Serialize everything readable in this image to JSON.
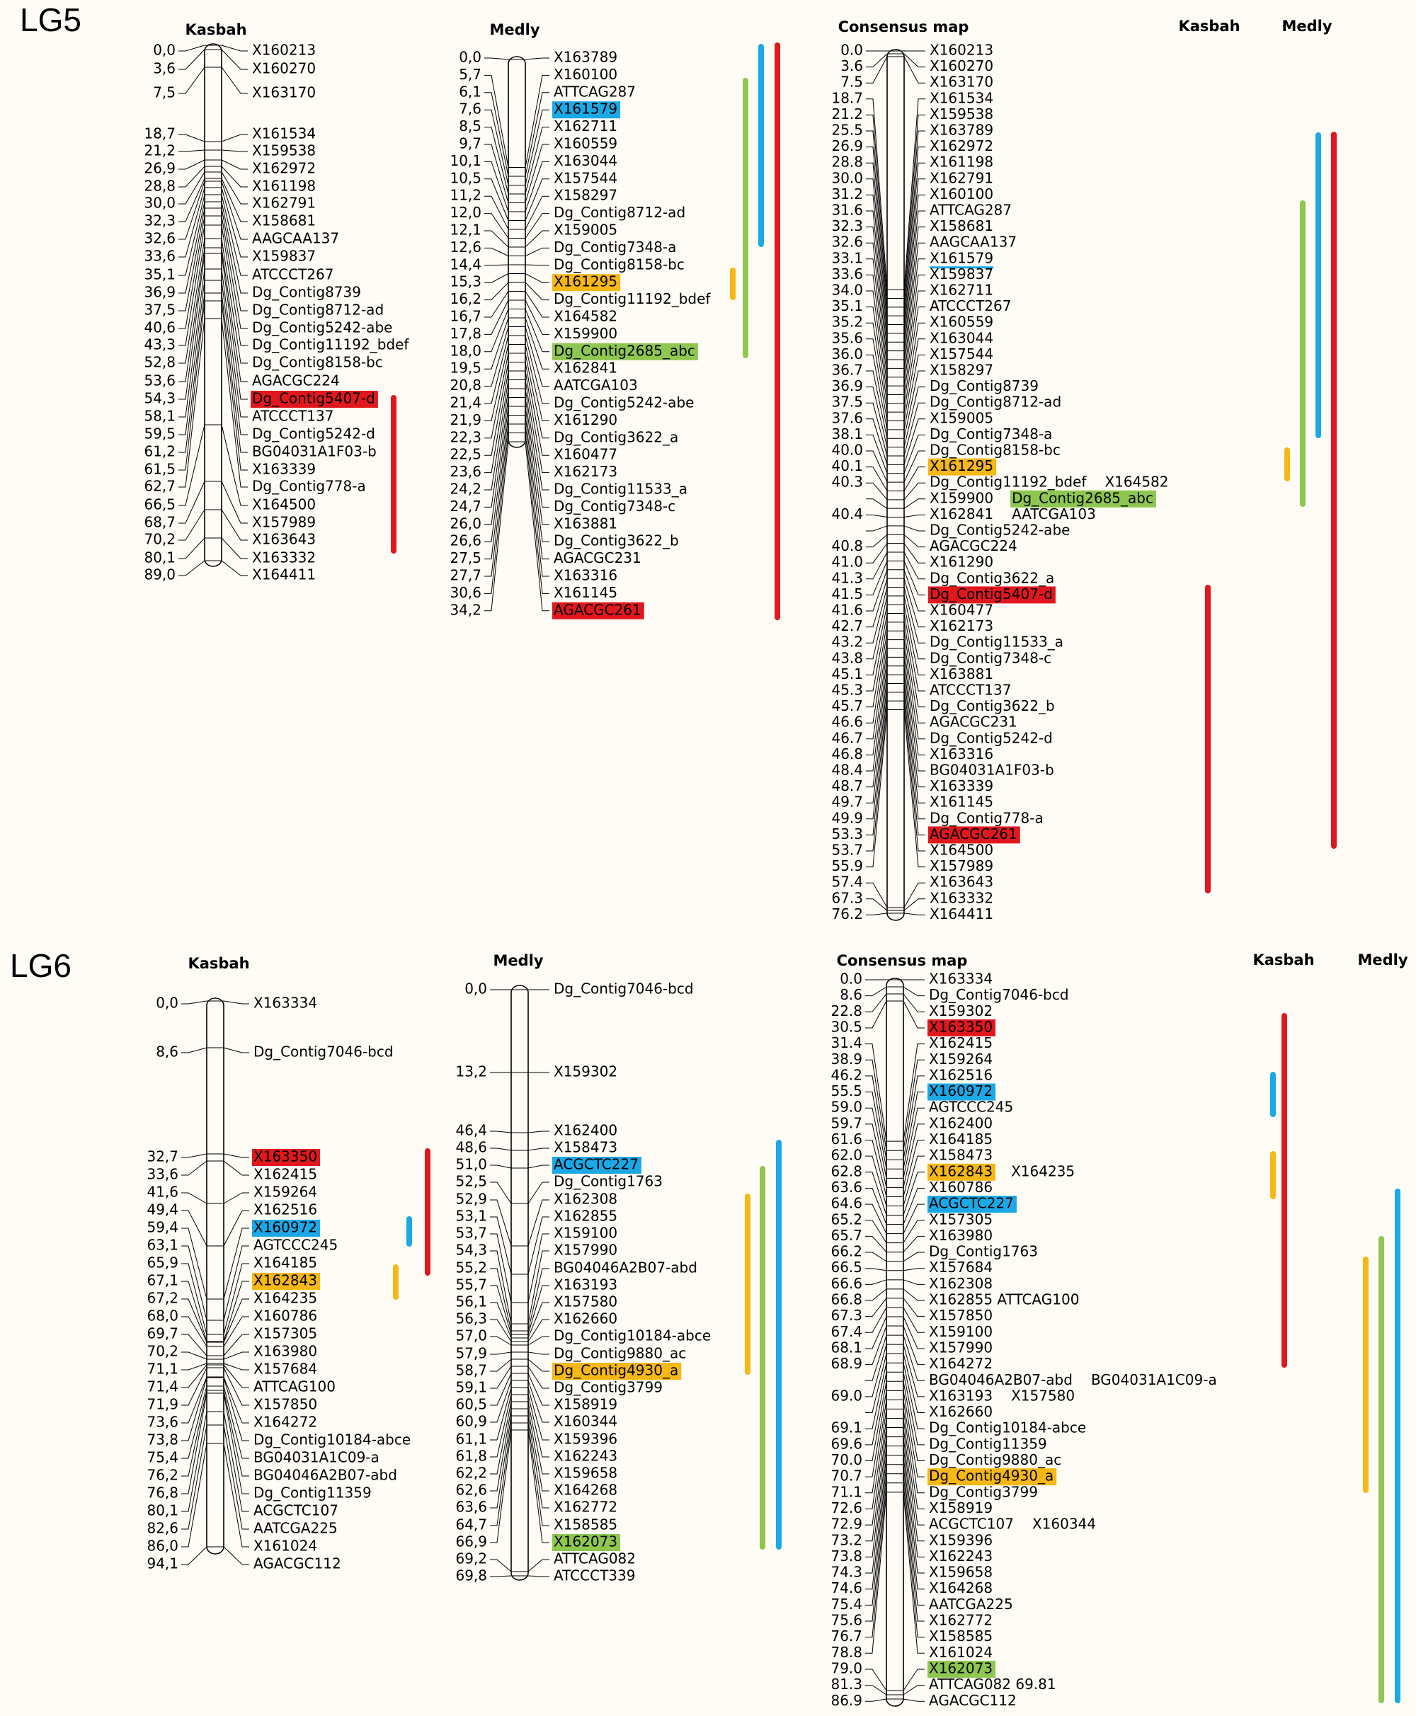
{
  "colors": {
    "background": "#fffcf6",
    "red": "#e0181e",
    "blue": "#1ba8e6",
    "green": "#8ec74f",
    "yellow": "#f7b714",
    "line": "#000000"
  },
  "legend_labels": {
    "kasbah": "Kasbah",
    "medly": "Medly"
  },
  "lg5": {
    "label": "LG5",
    "kasbah": {
      "title": "Kasbah",
      "markers": [
        {
          "pos": "0,0",
          "name": "X160213"
        },
        {
          "pos": "3,6",
          "name": "X160270"
        },
        {
          "pos": "7,5",
          "name": "X163170"
        },
        {
          "pos": "18,7",
          "name": "X161534"
        },
        {
          "pos": "21,2",
          "name": "X159538"
        },
        {
          "pos": "26,9",
          "name": "X162972"
        },
        {
          "pos": "28,8",
          "name": "X161198"
        },
        {
          "pos": "30,0",
          "name": "X162791"
        },
        {
          "pos": "32,3",
          "name": "X158681"
        },
        {
          "pos": "32,6",
          "name": "AAGCAA137"
        },
        {
          "pos": "33,6",
          "name": "X159837"
        },
        {
          "pos": "35,1",
          "name": "ATCCCT267"
        },
        {
          "pos": "36,9",
          "name": "Dg_Contig8739"
        },
        {
          "pos": "37,5",
          "name": "Dg_Contig8712-ad"
        },
        {
          "pos": "40,6",
          "name": "Dg_Contig5242-abe"
        },
        {
          "pos": "43,3",
          "name": "Dg_Contig11192_bdef"
        },
        {
          "pos": "52,8",
          "name": "Dg_Contig8158-bc"
        },
        {
          "pos": "53,6",
          "name": "AGACGC224"
        },
        {
          "pos": "54,3",
          "name": "Dg_Contig5407-d",
          "hl": "red"
        },
        {
          "pos": "58,1",
          "name": "ATCCCT137"
        },
        {
          "pos": "59,5",
          "name": "Dg_Contig5242-d"
        },
        {
          "pos": "61,2",
          "name": "BG04031A1F03-b"
        },
        {
          "pos": "61,5",
          "name": "X163339"
        },
        {
          "pos": "62,7",
          "name": "Dg_Contig778-a"
        },
        {
          "pos": "66,5",
          "name": "X164500"
        },
        {
          "pos": "68,7",
          "name": "X157989"
        },
        {
          "pos": "70,2",
          "name": "X163643"
        },
        {
          "pos": "80,1",
          "name": "X163332"
        },
        {
          "pos": "89,0",
          "name": "X164411"
        }
      ]
    },
    "medly": {
      "title": "Medly",
      "markers": [
        {
          "pos": "0,0",
          "name": "X163789"
        },
        {
          "pos": "5,7",
          "name": "X160100"
        },
        {
          "pos": "6,1",
          "name": "ATTCAG287"
        },
        {
          "pos": "7,6",
          "name": "X161579",
          "hl": "blue"
        },
        {
          "pos": "8,5",
          "name": "X162711"
        },
        {
          "pos": "9,7",
          "name": "X160559"
        },
        {
          "pos": "10,1",
          "name": "X163044"
        },
        {
          "pos": "10,5",
          "name": "X157544"
        },
        {
          "pos": "11,2",
          "name": "X158297"
        },
        {
          "pos": "12,0",
          "name": "Dg_Contig8712-ad"
        },
        {
          "pos": "12,1",
          "name": "X159005"
        },
        {
          "pos": "12,6",
          "name": "Dg_Contig7348-a"
        },
        {
          "pos": "14,4",
          "name": "Dg_Contig8158-bc"
        },
        {
          "pos": "15,3",
          "name": "X161295",
          "hl": "yellow"
        },
        {
          "pos": "16,2",
          "name": "Dg_Contig11192_bdef"
        },
        {
          "pos": "16,7",
          "name": "X164582"
        },
        {
          "pos": "17,8",
          "name": "X159900"
        },
        {
          "pos": "18,0",
          "name": "Dg_Contig2685_abc",
          "hl": "green"
        },
        {
          "pos": "19,5",
          "name": "X162841"
        },
        {
          "pos": "20,8",
          "name": "AATCGA103"
        },
        {
          "pos": "21,4",
          "name": "Dg_Contig5242-abe"
        },
        {
          "pos": "21,9",
          "name": "X161290"
        },
        {
          "pos": "22,3",
          "name": "Dg_Contig3622_a"
        },
        {
          "pos": "22,5",
          "name": "X160477"
        },
        {
          "pos": "23,6",
          "name": "X162173"
        },
        {
          "pos": "24,2",
          "name": "Dg_Contig11533_a"
        },
        {
          "pos": "24,7",
          "name": "Dg_Contig7348-c"
        },
        {
          "pos": "26,0",
          "name": "X163881"
        },
        {
          "pos": "26,6",
          "name": "Dg_Contig3622_b"
        },
        {
          "pos": "27,5",
          "name": "AGACGC231"
        },
        {
          "pos": "27,7",
          "name": "X163316"
        },
        {
          "pos": "30,6",
          "name": "X161145"
        },
        {
          "pos": "34,2",
          "name": "AGACGC261",
          "hl": "red"
        }
      ]
    },
    "consensus": {
      "title": "Consensus map",
      "markers": [
        {
          "pos": "0.0",
          "name": "X160213"
        },
        {
          "pos": "3.6",
          "name": "X160270"
        },
        {
          "pos": "7.5",
          "name": "X163170"
        },
        {
          "pos": "18.7",
          "name": "X161534"
        },
        {
          "pos": "21.2",
          "name": "X159538"
        },
        {
          "pos": "25.5",
          "name": "X163789"
        },
        {
          "pos": "26.9",
          "name": "X162972"
        },
        {
          "pos": "28.8",
          "name": "X161198"
        },
        {
          "pos": "30.0",
          "name": "X162791"
        },
        {
          "pos": "31.2",
          "name": "X160100"
        },
        {
          "pos": "31.6",
          "name": "ATTCAG287"
        },
        {
          "pos": "32.3",
          "name": "X158681"
        },
        {
          "pos": "32.6",
          "name": "AAGCAA137"
        },
        {
          "pos": "33.1",
          "name": "X161579",
          "ul": "blue"
        },
        {
          "pos": "33.6",
          "name": "X159837"
        },
        {
          "pos": "34.0",
          "name": "X162711"
        },
        {
          "pos": "35.1",
          "name": "ATCCCT267"
        },
        {
          "pos": "35.2",
          "name": "X160559"
        },
        {
          "pos": "35.6",
          "name": "X163044"
        },
        {
          "pos": "36.0",
          "name": "X157544"
        },
        {
          "pos": "36.7",
          "name": "X158297"
        },
        {
          "pos": "36.9",
          "name": "Dg_Contig8739"
        },
        {
          "pos": "37.5",
          "name": "Dg_Contig8712-ad"
        },
        {
          "pos": "37.6",
          "name": "X159005"
        },
        {
          "pos": "38.1",
          "name": "Dg_Contig7348-a"
        },
        {
          "pos": "40.0",
          "name": "Dg_Contig8158-bc"
        },
        {
          "pos": "40.1",
          "name": "X161295",
          "hl": "yellow"
        },
        {
          "pos": "40.3",
          "name": "Dg_Contig11192_bdef",
          "extra": "X164582"
        },
        {
          "pos": "",
          "name": "X159900",
          "extra": "Dg_Contig2685_abc",
          "extra_hl": "green"
        },
        {
          "pos": "40.4",
          "name": "X162841",
          "extra": "AATCGA103"
        },
        {
          "pos": "",
          "name": "Dg_Contig5242-abe"
        },
        {
          "pos": "40.8",
          "name": "AGACGC224"
        },
        {
          "pos": "41.0",
          "name": "X161290"
        },
        {
          "pos": "41.3",
          "name": "Dg_Contig3622_a"
        },
        {
          "pos": "41.5",
          "name": "Dg_Contig5407-d",
          "hl": "red"
        },
        {
          "pos": "41.6",
          "name": "X160477"
        },
        {
          "pos": "42.7",
          "name": "X162173"
        },
        {
          "pos": "43.2",
          "name": "Dg_Contig11533_a"
        },
        {
          "pos": "43.8",
          "name": "Dg_Contig7348-c"
        },
        {
          "pos": "45.1",
          "name": "X163881"
        },
        {
          "pos": "45.3",
          "name": "ATCCCT137"
        },
        {
          "pos": "45.7",
          "name": "Dg_Contig3622_b"
        },
        {
          "pos": "46.6",
          "name": "AGACGC231"
        },
        {
          "pos": "46.7",
          "name": "Dg_Contig5242-d"
        },
        {
          "pos": "46.8",
          "name": "X163316"
        },
        {
          "pos": "48.4",
          "name": "BG04031A1F03-b"
        },
        {
          "pos": "48.7",
          "name": "X163339"
        },
        {
          "pos": "49.7",
          "name": "X161145"
        },
        {
          "pos": "49.9",
          "name": "Dg_Contig778-a"
        },
        {
          "pos": "53.3",
          "name": "AGACGC261",
          "hl": "red"
        },
        {
          "pos": "53.7",
          "name": "X164500"
        },
        {
          "pos": "55.9",
          "name": "X157989"
        },
        {
          "pos": "57.4",
          "name": "X163643"
        },
        {
          "pos": "67.3",
          "name": "X163332"
        },
        {
          "pos": "76.2",
          "name": "X164411"
        }
      ]
    }
  },
  "lg6": {
    "label": "LG6",
    "kasbah": {
      "title": "Kasbah",
      "markers": [
        {
          "pos": "0,0",
          "name": "X163334"
        },
        {
          "pos": "8,6",
          "name": "Dg_Contig7046-bcd"
        },
        {
          "pos": "32,7",
          "name": "X163350",
          "hl": "red"
        },
        {
          "pos": "33,6",
          "name": "X162415"
        },
        {
          "pos": "41,6",
          "name": "X159264"
        },
        {
          "pos": "49,4",
          "name": "X162516"
        },
        {
          "pos": "59,4",
          "name": "X160972",
          "hl": "blue"
        },
        {
          "pos": "63,1",
          "name": "AGTCCC245"
        },
        {
          "pos": "65,9",
          "name": "X164185"
        },
        {
          "pos": "67,1",
          "name": "X162843",
          "hl": "yellow"
        },
        {
          "pos": "67,2",
          "name": "X164235"
        },
        {
          "pos": "68,0",
          "name": "X160786"
        },
        {
          "pos": "69,7",
          "name": "X157305"
        },
        {
          "pos": "70,2",
          "name": "X163980"
        },
        {
          "pos": "71,1",
          "name": "X157684"
        },
        {
          "pos": "71,4",
          "name": "ATTCAG100"
        },
        {
          "pos": "71,9",
          "name": "X157850"
        },
        {
          "pos": "73,6",
          "name": "X164272"
        },
        {
          "pos": "73,8",
          "name": "Dg_Contig10184-abce"
        },
        {
          "pos": "75,4",
          "name": "BG04031A1C09-a"
        },
        {
          "pos": "76,2",
          "name": "BG04046A2B07-abd"
        },
        {
          "pos": "76,8",
          "name": "Dg_Contig11359"
        },
        {
          "pos": "80,1",
          "name": "ACGCTC107"
        },
        {
          "pos": "82,6",
          "name": "AATCGA225"
        },
        {
          "pos": "86,0",
          "name": "X161024"
        },
        {
          "pos": "94,1",
          "name": "AGACGC112"
        }
      ]
    },
    "medly": {
      "title": "Medly",
      "markers": [
        {
          "pos": "0,0",
          "name": "Dg_Contig7046-bcd"
        },
        {
          "pos": "13,2",
          "name": "X159302"
        },
        {
          "pos": "46,4",
          "name": "X162400"
        },
        {
          "pos": "48,6",
          "name": "X158473"
        },
        {
          "pos": "51,0",
          "name": "ACGCTC227",
          "hl": "blue"
        },
        {
          "pos": "52,5",
          "name": "Dg_Contig1763"
        },
        {
          "pos": "52,9",
          "name": "X162308"
        },
        {
          "pos": "53,1",
          "name": "X162855"
        },
        {
          "pos": "53,7",
          "name": "X159100"
        },
        {
          "pos": "54,3",
          "name": "X157990"
        },
        {
          "pos": "55,2",
          "name": "BG04046A2B07-abd"
        },
        {
          "pos": "55,7",
          "name": "X163193"
        },
        {
          "pos": "56,1",
          "name": "X157580"
        },
        {
          "pos": "56,3",
          "name": "X162660"
        },
        {
          "pos": "57,0",
          "name": "Dg_Contig10184-abce"
        },
        {
          "pos": "57,9",
          "name": "Dg_Contig9880_ac"
        },
        {
          "pos": "58,7",
          "name": "Dg_Contig4930_a",
          "hl": "yellow"
        },
        {
          "pos": "59,1",
          "name": "Dg_Contig3799"
        },
        {
          "pos": "60,5",
          "name": "X158919"
        },
        {
          "pos": "60,9",
          "name": "X160344"
        },
        {
          "pos": "61,1",
          "name": "X159396"
        },
        {
          "pos": "61,8",
          "name": "X162243"
        },
        {
          "pos": "62,2",
          "name": "X159658"
        },
        {
          "pos": "62,6",
          "name": "X164268"
        },
        {
          "pos": "63,6",
          "name": "X162772"
        },
        {
          "pos": "64,7",
          "name": "X158585"
        },
        {
          "pos": "66,9",
          "name": "X162073",
          "hl": "green"
        },
        {
          "pos": "69,2",
          "name": "ATTCAG082"
        },
        {
          "pos": "69,8",
          "name": "ATCCCT339"
        }
      ]
    },
    "consensus": {
      "title": "Consensus map",
      "markers": [
        {
          "pos": "0.0",
          "name": "X163334"
        },
        {
          "pos": "8.6",
          "name": "Dg_Contig7046-bcd"
        },
        {
          "pos": "22.8",
          "name": "X159302"
        },
        {
          "pos": "30.5",
          "name": "X163350",
          "hl": "red"
        },
        {
          "pos": "31.4",
          "name": "X162415"
        },
        {
          "pos": "38.9",
          "name": "X159264"
        },
        {
          "pos": "46.2",
          "name": "X162516"
        },
        {
          "pos": "55.5",
          "name": "X160972",
          "hl": "blue"
        },
        {
          "pos": "59.0",
          "name": "AGTCCC245"
        },
        {
          "pos": "59.7",
          "name": "X162400"
        },
        {
          "pos": "61.6",
          "name": "X164185"
        },
        {
          "pos": "62.0",
          "name": "X158473"
        },
        {
          "pos": "62.8",
          "name": "X162843",
          "hl": "yellow",
          "extra": "X164235"
        },
        {
          "pos": "63.6",
          "name": "X160786"
        },
        {
          "pos": "64.6",
          "name": "ACGCTC227",
          "hl": "blue"
        },
        {
          "pos": "65.2",
          "name": "X157305"
        },
        {
          "pos": "65.7",
          "name": "X163980"
        },
        {
          "pos": "66.2",
          "name": "Dg_Contig1763"
        },
        {
          "pos": "66.5",
          "name": "X157684"
        },
        {
          "pos": "66.6",
          "name": "X162308"
        },
        {
          "pos": "66.8",
          "name": "X162855 ATTCAG100"
        },
        {
          "pos": "67.3",
          "name": "X157850"
        },
        {
          "pos": "67.4",
          "name": "X159100"
        },
        {
          "pos": "68.1",
          "name": "X157990"
        },
        {
          "pos": "68.9",
          "name": "X164272"
        },
        {
          "pos": "",
          "name": "BG04046A2B07-abd",
          "extra": "BG04031A1C09-a"
        },
        {
          "pos": "69.0",
          "name": "X163193",
          "extra": "X157580"
        },
        {
          "pos": "",
          "name": "X162660"
        },
        {
          "pos": "69.1",
          "name": "Dg_Contig10184-abce"
        },
        {
          "pos": "69.6",
          "name": "Dg_Contig11359"
        },
        {
          "pos": "70.0",
          "name": "Dg_Contig9880_ac"
        },
        {
          "pos": "70.7",
          "name": "Dg_Contig4930_a",
          "hl": "yellow"
        },
        {
          "pos": "71.1",
          "name": "Dg_Contig3799"
        },
        {
          "pos": "72.6",
          "name": "X158919"
        },
        {
          "pos": "72.9",
          "name": "ACGCTC107",
          "extra": "X160344"
        },
        {
          "pos": "73.2",
          "name": "X159396"
        },
        {
          "pos": "73.8",
          "name": "X162243"
        },
        {
          "pos": "74.3",
          "name": "X159658"
        },
        {
          "pos": "74.6",
          "name": "X164268"
        },
        {
          "pos": "75.4",
          "name": "AATCGA225"
        },
        {
          "pos": "75.6",
          "name": "X162772"
        },
        {
          "pos": "76.7",
          "name": "X158585"
        },
        {
          "pos": "78.8",
          "name": "X161024"
        },
        {
          "pos": "79.0",
          "name": "X162073",
          "hl": "green"
        },
        {
          "pos": "81.3",
          "name": "ATTCAG082 69.81"
        },
        {
          "pos": "86.9",
          "name": "AGACGC112"
        }
      ]
    }
  }
}
